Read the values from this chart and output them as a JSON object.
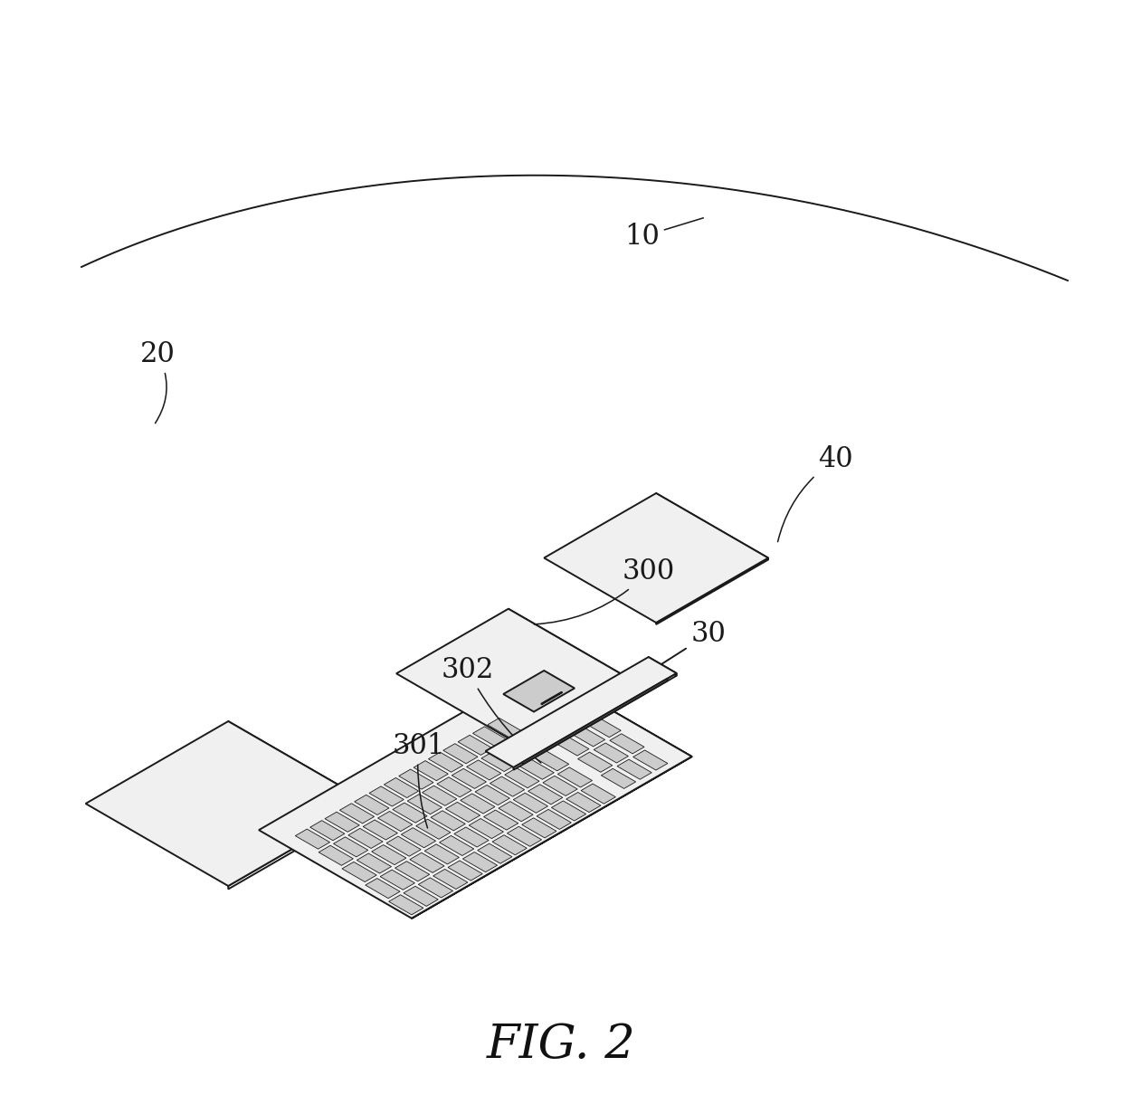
{
  "title": "FIG. 2",
  "title_fontsize": 38,
  "title_style": "italic",
  "background_color": "#ffffff",
  "line_color": "#1a1a1a",
  "face_color_white": "#ffffff",
  "face_color_light": "#f0f0f0",
  "face_color_mid": "#e0e0e0",
  "face_color_dark": "#cccccc",
  "lw": 1.4
}
